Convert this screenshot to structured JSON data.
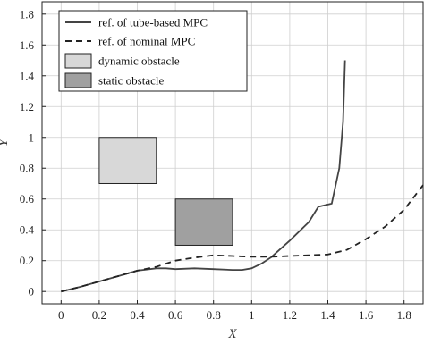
{
  "chart_data": {
    "type": "line",
    "xlabel": "X",
    "ylabel": "Y",
    "xlim": [
      -0.1,
      1.9
    ],
    "ylim": [
      -0.08,
      1.88
    ],
    "xticks": [
      0,
      0.2,
      0.4,
      0.6,
      0.8,
      1,
      1.2,
      1.4,
      1.6,
      1.8
    ],
    "xtick_labels": [
      "0",
      "0.2",
      "0.4",
      "0.6",
      "0.8",
      "1",
      "1.2",
      "1.4",
      "1.6",
      "1.8"
    ],
    "yticks": [
      0,
      0.2,
      0.4,
      0.6,
      0.8,
      1,
      1.2,
      1.4,
      1.6,
      1.8
    ],
    "ytick_labels": [
      "0",
      "0.2",
      "0.4",
      "0.6",
      "0.8",
      "1",
      "1.2",
      "1.4",
      "1.6",
      "1.8"
    ],
    "grid": true,
    "legend_position": "top-left",
    "series": [
      {
        "name": "ref. of tube-based MPC",
        "style": "solid",
        "color": "#444444",
        "points": [
          [
            0,
            0
          ],
          [
            0.1,
            0.03
          ],
          [
            0.2,
            0.065
          ],
          [
            0.3,
            0.1
          ],
          [
            0.4,
            0.135
          ],
          [
            0.5,
            0.15
          ],
          [
            0.55,
            0.15
          ],
          [
            0.6,
            0.145
          ],
          [
            0.7,
            0.15
          ],
          [
            0.8,
            0.145
          ],
          [
            0.9,
            0.14
          ],
          [
            0.95,
            0.14
          ],
          [
            1.0,
            0.15
          ],
          [
            1.05,
            0.18
          ],
          [
            1.1,
            0.22
          ],
          [
            1.2,
            0.33
          ],
          [
            1.3,
            0.45
          ],
          [
            1.35,
            0.55
          ],
          [
            1.42,
            0.57
          ],
          [
            1.46,
            0.8
          ],
          [
            1.48,
            1.1
          ],
          [
            1.49,
            1.5
          ]
        ]
      },
      {
        "name": "ref. of nominal MPC",
        "style": "dashed",
        "color": "#222222",
        "points": [
          [
            0,
            0
          ],
          [
            0.1,
            0.03
          ],
          [
            0.2,
            0.065
          ],
          [
            0.3,
            0.1
          ],
          [
            0.4,
            0.135
          ],
          [
            0.5,
            0.16
          ],
          [
            0.6,
            0.2
          ],
          [
            0.7,
            0.22
          ],
          [
            0.8,
            0.235
          ],
          [
            0.9,
            0.23
          ],
          [
            1.0,
            0.225
          ],
          [
            1.1,
            0.225
          ],
          [
            1.2,
            0.23
          ],
          [
            1.3,
            0.235
          ],
          [
            1.4,
            0.24
          ],
          [
            1.5,
            0.27
          ],
          [
            1.6,
            0.34
          ],
          [
            1.7,
            0.42
          ],
          [
            1.8,
            0.53
          ],
          [
            1.9,
            0.69
          ]
        ]
      }
    ],
    "obstacles": [
      {
        "name": "dynamic obstacle",
        "x": [
          0.2,
          0.5
        ],
        "y": [
          0.7,
          1.0
        ],
        "color": "#d8d8d8"
      },
      {
        "name": "static obstacle",
        "x": [
          0.6,
          0.9
        ],
        "y": [
          0.3,
          0.6
        ],
        "color": "#a0a0a0"
      }
    ]
  }
}
